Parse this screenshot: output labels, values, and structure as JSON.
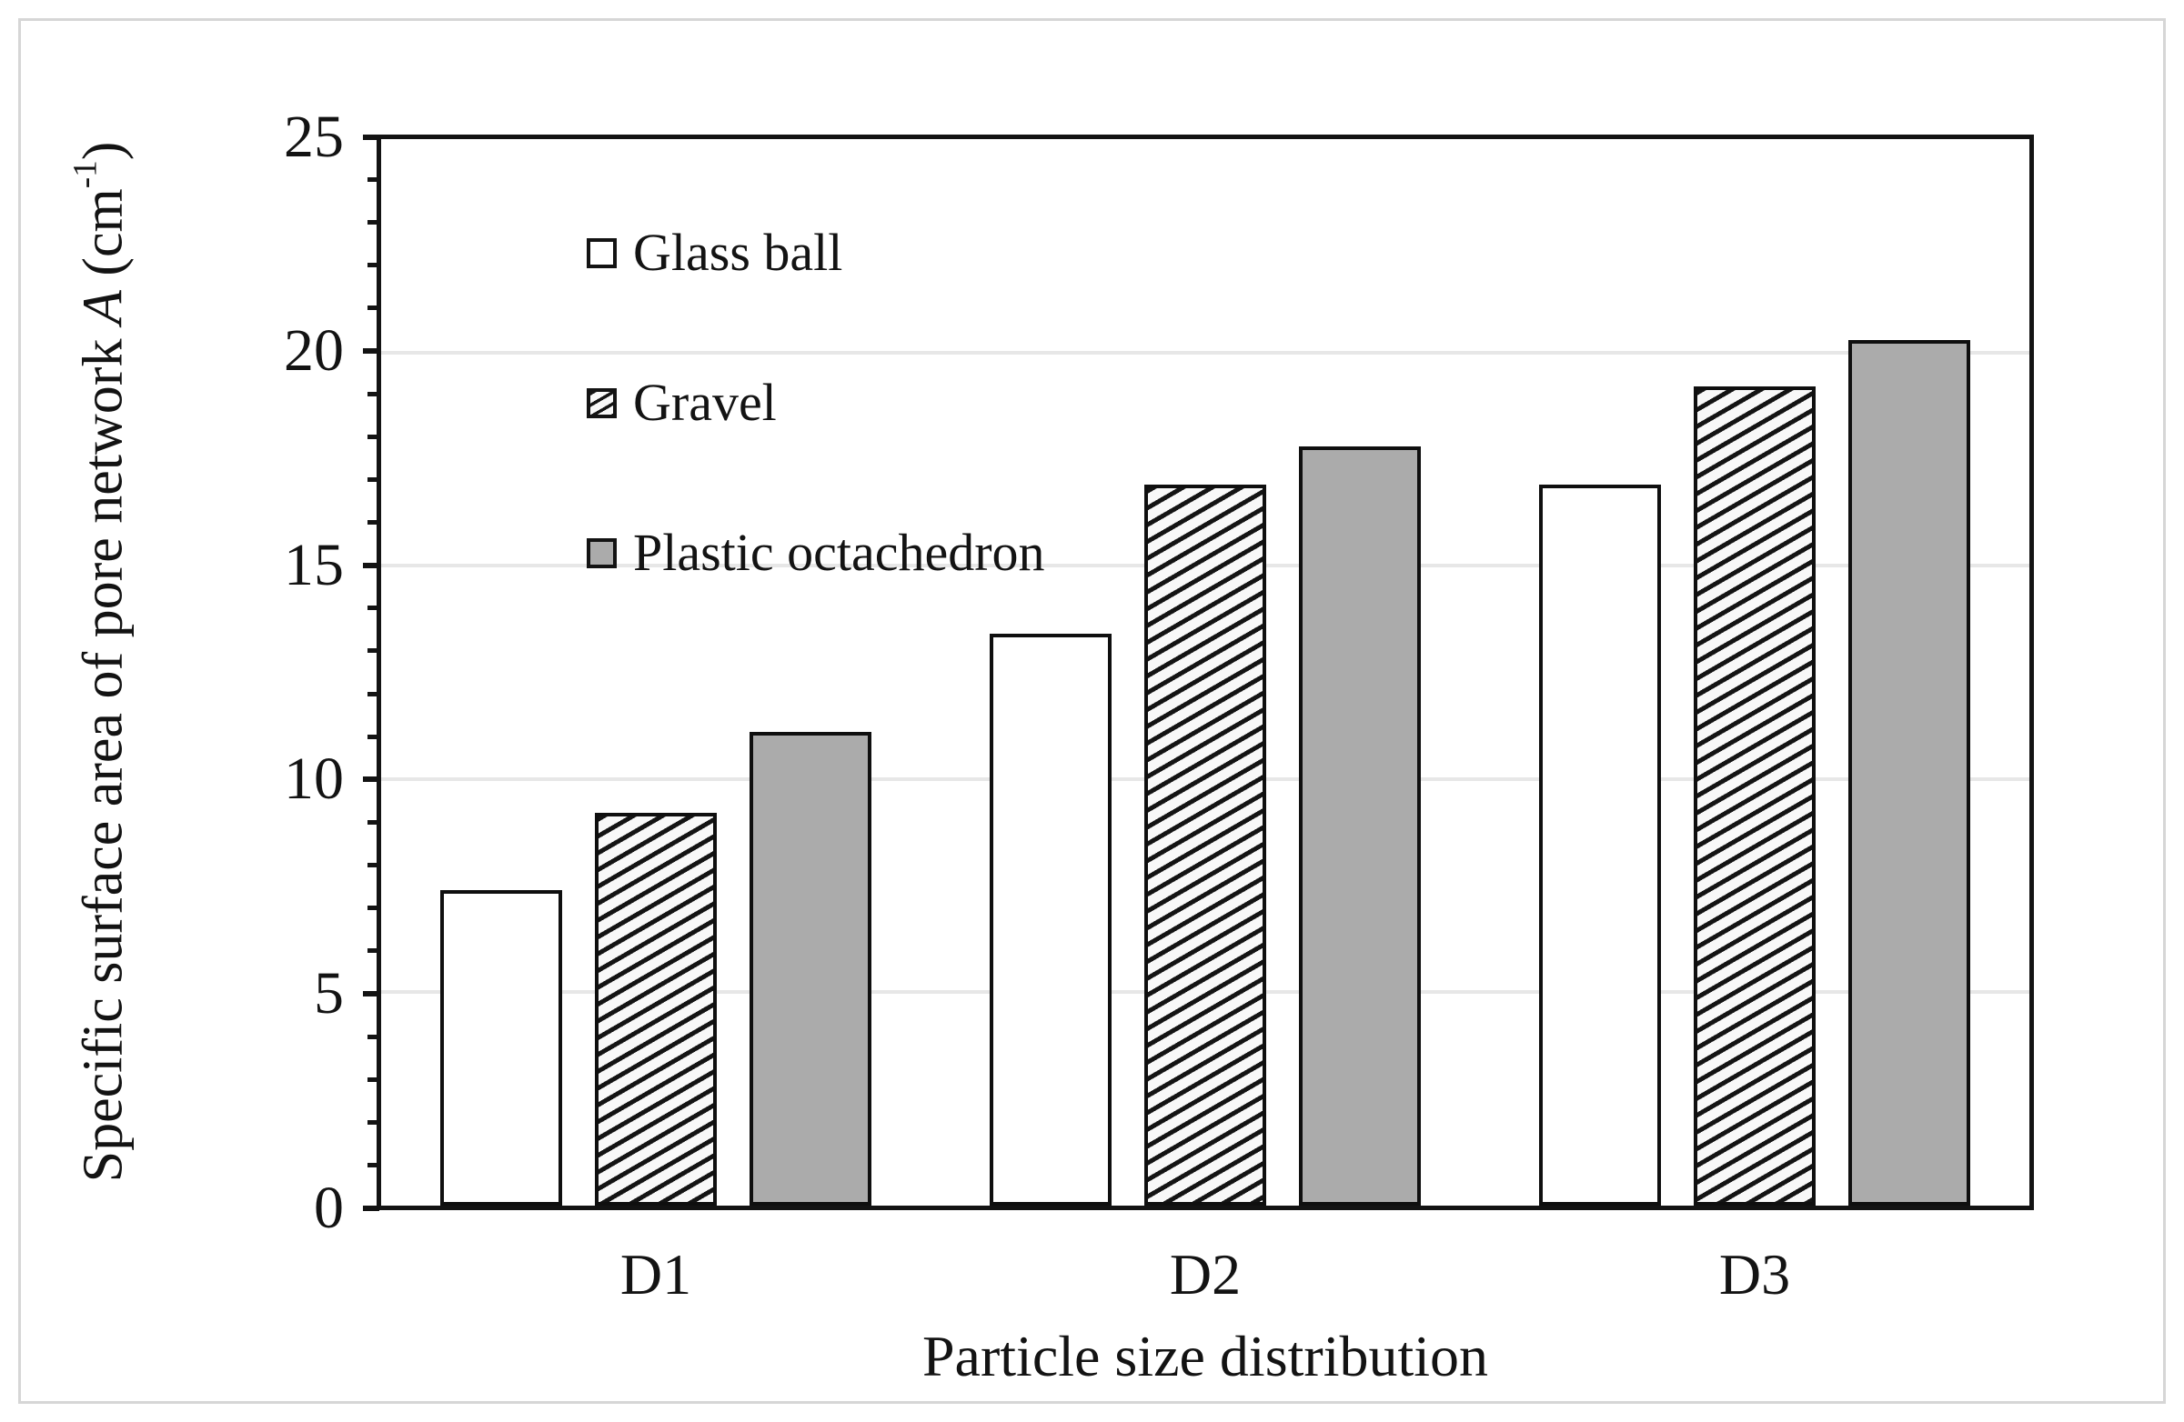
{
  "figure": {
    "background": "#ffffff",
    "frame_border_color": "#d6d6d6",
    "line_color": "#131313",
    "gridline_color": "#e7e7e7",
    "bar_gray_fill": "#ababab",
    "hatch_pattern": "upward-diagonal"
  },
  "chart_data": {
    "type": "bar",
    "title": "",
    "categories": [
      "D1",
      "D2",
      "D3"
    ],
    "series": [
      {
        "name": "Glass ball",
        "style": "white-outline",
        "values": [
          7.4,
          13.4,
          16.9
        ]
      },
      {
        "name": "Gravel",
        "style": "diagonal-hatch",
        "values": [
          9.2,
          16.9,
          19.2
        ]
      },
      {
        "name": "Plastic octachedron",
        "style": "solid-gray",
        "values": [
          11.1,
          17.8,
          20.3
        ]
      }
    ],
    "xlabel": "Particle size distribution",
    "ylabel": "Specific surface area of pore network A (cm⁻¹)",
    "ylim": [
      0,
      25
    ],
    "y_major_ticks": [
      0,
      5,
      10,
      15,
      20,
      25
    ],
    "y_minor_step": 1,
    "grid": "horizontal-major-only",
    "legend_position": "inside-top-left",
    "legend_entries": [
      "Glass ball",
      "Gravel",
      "Plastic octachedron"
    ]
  },
  "x_axis": {
    "title": "Particle size distribution"
  },
  "y_title": {
    "prefix": "Specific surface area of pore network ",
    "variable": "A",
    "unit_open": " (cm",
    "sup": "-1",
    "unit_close": ")"
  },
  "legend": {
    "items": [
      {
        "label": "Glass ball",
        "swatch": "white-outline"
      },
      {
        "label": "Gravel",
        "swatch": "diagonal-hatch"
      },
      {
        "label": "Plastic octachedron",
        "swatch": "solid-gray"
      }
    ]
  }
}
